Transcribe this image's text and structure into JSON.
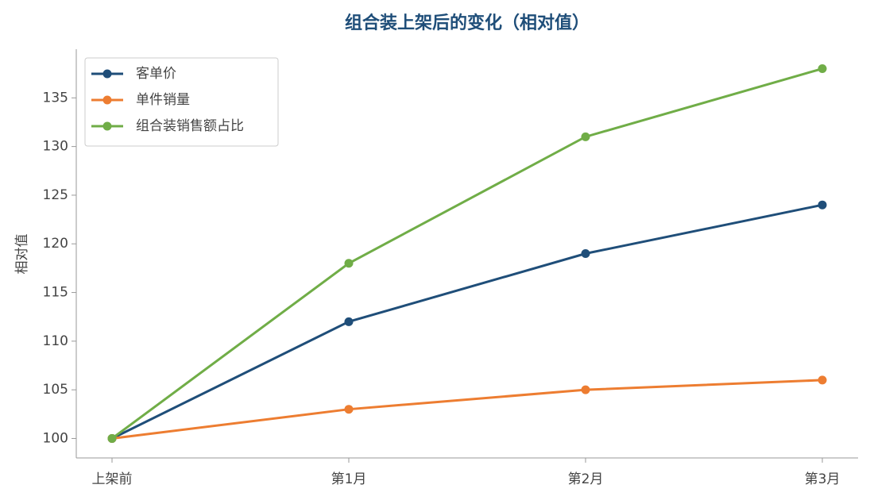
{
  "chart_data": {
    "type": "line",
    "title": "组合装上架后的变化（相对值）",
    "y_label": "相对值",
    "categories": [
      "上架前",
      "第1月",
      "第2月",
      "第3月"
    ],
    "series": [
      {
        "name": "客单价",
        "color": "#1f4e79",
        "values": [
          100,
          112,
          119,
          124
        ]
      },
      {
        "name": "单件销量",
        "color": "#ed7d31",
        "values": [
          100,
          103,
          105,
          106
        ]
      },
      {
        "name": "组合装销售额占比",
        "color": "#70ad47",
        "values": [
          100,
          118,
          131,
          138
        ]
      }
    ],
    "ylim": [
      98,
      140
    ],
    "yticks": [
      100,
      105,
      110,
      115,
      120,
      125,
      130,
      135
    ],
    "grid": false,
    "legend": "upper left"
  }
}
